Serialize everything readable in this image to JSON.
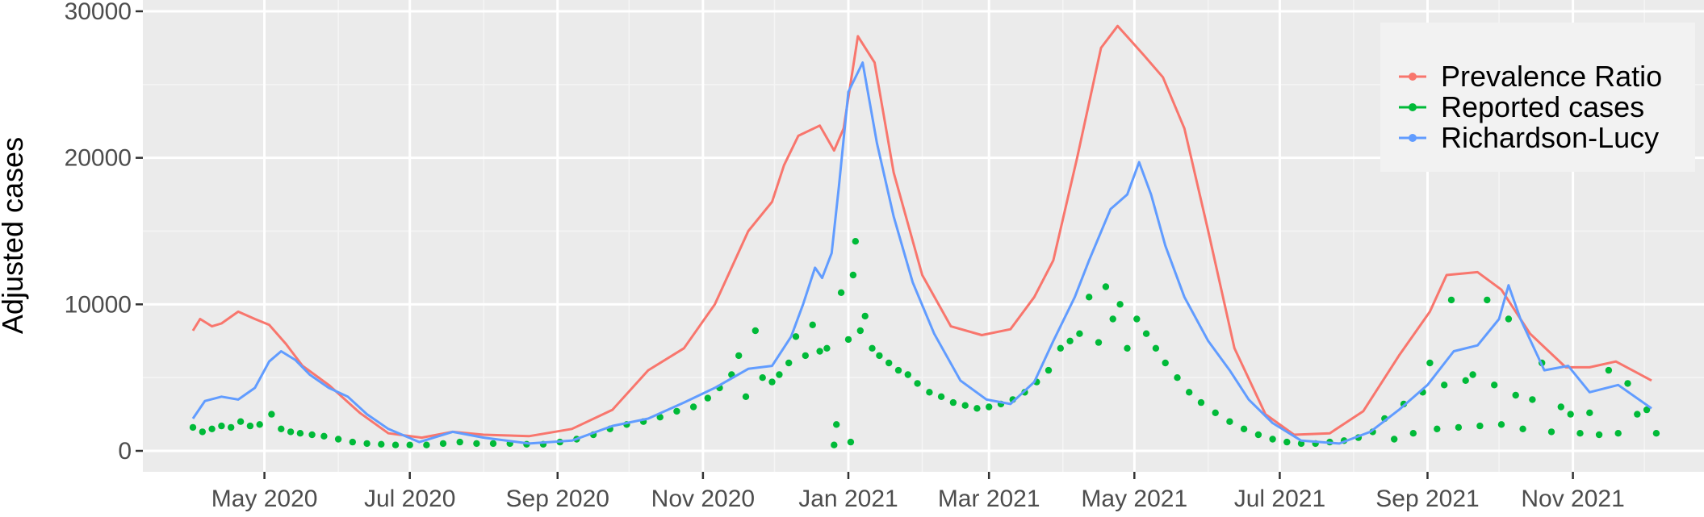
{
  "chart_data": {
    "type": "line",
    "ylabel": "Adjusted cases",
    "xlabel": "",
    "ylim": [
      0,
      30000
    ],
    "xlim": [
      "2020-03-11",
      "2021-12-26"
    ],
    "yticks": [
      0,
      10000,
      20000,
      30000
    ],
    "ytick_labels": [
      "0",
      "10000",
      "20000",
      "30000"
    ],
    "xticks": [
      {
        "date": "2020-05-01",
        "label": "May 2020"
      },
      {
        "date": "2020-07-01",
        "label": "Jul 2020"
      },
      {
        "date": "2020-09-01",
        "label": "Sep 2020"
      },
      {
        "date": "2020-11-01",
        "label": "Nov 2020"
      },
      {
        "date": "2021-01-01",
        "label": "Jan 2021"
      },
      {
        "date": "2021-03-01",
        "label": "Mar 2021"
      },
      {
        "date": "2021-05-01",
        "label": "May 2021"
      },
      {
        "date": "2021-07-01",
        "label": "Jul 2021"
      },
      {
        "date": "2021-09-01",
        "label": "Sep 2021"
      },
      {
        "date": "2021-11-01",
        "label": "Nov 2021"
      }
    ],
    "grid": true,
    "legend_position": "top-right",
    "series": [
      {
        "name": "Prevalence Ratio",
        "kind": "line",
        "color": "#F8766D",
        "points": [
          [
            "2020-04-01",
            8200
          ],
          [
            "2020-04-04",
            9000
          ],
          [
            "2020-04-09",
            8500
          ],
          [
            "2020-04-13",
            8700
          ],
          [
            "2020-04-20",
            9500
          ],
          [
            "2020-04-27",
            9000
          ],
          [
            "2020-05-03",
            8600
          ],
          [
            "2020-05-10",
            7300
          ],
          [
            "2020-05-17",
            5800
          ],
          [
            "2020-05-28",
            4500
          ],
          [
            "2020-06-10",
            2600
          ],
          [
            "2020-06-22",
            1200
          ],
          [
            "2020-07-06",
            900
          ],
          [
            "2020-07-19",
            1300
          ],
          [
            "2020-08-01",
            1100
          ],
          [
            "2020-08-20",
            1000
          ],
          [
            "2020-09-07",
            1500
          ],
          [
            "2020-09-24",
            2800
          ],
          [
            "2020-10-09",
            5500
          ],
          [
            "2020-10-24",
            7000
          ],
          [
            "2020-11-06",
            10000
          ],
          [
            "2020-11-20",
            15000
          ],
          [
            "2020-11-30",
            17000
          ],
          [
            "2020-12-05",
            19500
          ],
          [
            "2020-12-11",
            21500
          ],
          [
            "2020-12-20",
            22200
          ],
          [
            "2020-12-26",
            20500
          ],
          [
            "2020-12-30",
            22000
          ],
          [
            "2021-01-05",
            28300
          ],
          [
            "2021-01-12",
            26500
          ],
          [
            "2021-01-20",
            19000
          ],
          [
            "2021-02-01",
            12000
          ],
          [
            "2021-02-13",
            8500
          ],
          [
            "2021-02-26",
            7900
          ],
          [
            "2021-03-10",
            8300
          ],
          [
            "2021-03-20",
            10500
          ],
          [
            "2021-03-28",
            13000
          ],
          [
            "2021-04-07",
            20000
          ],
          [
            "2021-04-17",
            27500
          ],
          [
            "2021-04-24",
            29000
          ],
          [
            "2021-05-05",
            27000
          ],
          [
            "2021-05-13",
            25500
          ],
          [
            "2021-05-22",
            22000
          ],
          [
            "2021-06-01",
            15000
          ],
          [
            "2021-06-12",
            7000
          ],
          [
            "2021-06-25",
            2500
          ],
          [
            "2021-07-07",
            1100
          ],
          [
            "2021-07-22",
            1200
          ],
          [
            "2021-08-05",
            2700
          ],
          [
            "2021-08-20",
            6500
          ],
          [
            "2021-09-02",
            9500
          ],
          [
            "2021-09-09",
            12000
          ],
          [
            "2021-09-22",
            12200
          ],
          [
            "2021-10-02",
            11000
          ],
          [
            "2021-10-14",
            8000
          ],
          [
            "2021-10-29",
            5700
          ],
          [
            "2021-11-08",
            5700
          ],
          [
            "2021-11-19",
            6100
          ],
          [
            "2021-12-04",
            4800
          ]
        ]
      },
      {
        "name": "Reported cases",
        "kind": "points",
        "color": "#00BA38",
        "points": [
          [
            "2020-04-01",
            1600
          ],
          [
            "2020-04-05",
            1300
          ],
          [
            "2020-04-09",
            1500
          ],
          [
            "2020-04-13",
            1700
          ],
          [
            "2020-04-17",
            1600
          ],
          [
            "2020-04-21",
            2000
          ],
          [
            "2020-04-25",
            1700
          ],
          [
            "2020-04-29",
            1800
          ],
          [
            "2020-05-04",
            2500
          ],
          [
            "2020-05-08",
            1500
          ],
          [
            "2020-05-12",
            1300
          ],
          [
            "2020-05-16",
            1200
          ],
          [
            "2020-05-21",
            1100
          ],
          [
            "2020-05-26",
            1000
          ],
          [
            "2020-06-01",
            800
          ],
          [
            "2020-06-07",
            600
          ],
          [
            "2020-06-13",
            500
          ],
          [
            "2020-06-19",
            450
          ],
          [
            "2020-06-25",
            400
          ],
          [
            "2020-07-01",
            400
          ],
          [
            "2020-07-08",
            400
          ],
          [
            "2020-07-15",
            500
          ],
          [
            "2020-07-22",
            600
          ],
          [
            "2020-07-29",
            500
          ],
          [
            "2020-08-05",
            500
          ],
          [
            "2020-08-12",
            500
          ],
          [
            "2020-08-19",
            450
          ],
          [
            "2020-08-26",
            450
          ],
          [
            "2020-09-02",
            600
          ],
          [
            "2020-09-09",
            800
          ],
          [
            "2020-09-16",
            1100
          ],
          [
            "2020-09-23",
            1500
          ],
          [
            "2020-09-30",
            1800
          ],
          [
            "2020-10-07",
            2000
          ],
          [
            "2020-10-14",
            2300
          ],
          [
            "2020-10-21",
            2700
          ],
          [
            "2020-10-28",
            3000
          ],
          [
            "2020-11-03",
            3600
          ],
          [
            "2020-11-08",
            4300
          ],
          [
            "2020-11-13",
            5200
          ],
          [
            "2020-11-16",
            6500
          ],
          [
            "2020-11-19",
            3700
          ],
          [
            "2020-11-23",
            8200
          ],
          [
            "2020-11-26",
            5000
          ],
          [
            "2020-11-30",
            4700
          ],
          [
            "2020-12-03",
            5200
          ],
          [
            "2020-12-07",
            6000
          ],
          [
            "2020-12-10",
            7800
          ],
          [
            "2020-12-14",
            6500
          ],
          [
            "2020-12-17",
            8600
          ],
          [
            "2020-12-20",
            6800
          ],
          [
            "2020-12-23",
            7000
          ],
          [
            "2020-12-26",
            400
          ],
          [
            "2020-12-27",
            1800
          ],
          [
            "2020-12-29",
            10800
          ],
          [
            "2021-01-01",
            7600
          ],
          [
            "2021-01-02",
            600
          ],
          [
            "2021-01-03",
            12000
          ],
          [
            "2021-01-04",
            14300
          ],
          [
            "2021-01-06",
            8200
          ],
          [
            "2021-01-08",
            9200
          ],
          [
            "2021-01-11",
            7000
          ],
          [
            "2021-01-14",
            6500
          ],
          [
            "2021-01-18",
            6000
          ],
          [
            "2021-01-22",
            5500
          ],
          [
            "2021-01-26",
            5200
          ],
          [
            "2021-01-30",
            4600
          ],
          [
            "2021-02-04",
            4000
          ],
          [
            "2021-02-09",
            3700
          ],
          [
            "2021-02-14",
            3300
          ],
          [
            "2021-02-19",
            3100
          ],
          [
            "2021-02-24",
            2900
          ],
          [
            "2021-03-01",
            3000
          ],
          [
            "2021-03-06",
            3200
          ],
          [
            "2021-03-11",
            3500
          ],
          [
            "2021-03-16",
            4000
          ],
          [
            "2021-03-21",
            4700
          ],
          [
            "2021-03-26",
            5500
          ],
          [
            "2021-03-31",
            7000
          ],
          [
            "2021-04-04",
            7500
          ],
          [
            "2021-04-08",
            8000
          ],
          [
            "2021-04-12",
            10500
          ],
          [
            "2021-04-16",
            7400
          ],
          [
            "2021-04-19",
            11200
          ],
          [
            "2021-04-22",
            9000
          ],
          [
            "2021-04-25",
            10000
          ],
          [
            "2021-04-28",
            7000
          ],
          [
            "2021-05-02",
            9000
          ],
          [
            "2021-05-06",
            8000
          ],
          [
            "2021-05-10",
            7000
          ],
          [
            "2021-05-14",
            6000
          ],
          [
            "2021-05-19",
            5000
          ],
          [
            "2021-05-24",
            4000
          ],
          [
            "2021-05-29",
            3300
          ],
          [
            "2021-06-04",
            2600
          ],
          [
            "2021-06-10",
            2000
          ],
          [
            "2021-06-16",
            1500
          ],
          [
            "2021-06-22",
            1100
          ],
          [
            "2021-06-28",
            800
          ],
          [
            "2021-07-04",
            600
          ],
          [
            "2021-07-10",
            500
          ],
          [
            "2021-07-16",
            500
          ],
          [
            "2021-07-22",
            600
          ],
          [
            "2021-07-28",
            700
          ],
          [
            "2021-08-03",
            900
          ],
          [
            "2021-08-09",
            1300
          ],
          [
            "2021-08-14",
            2200
          ],
          [
            "2021-08-18",
            800
          ],
          [
            "2021-08-22",
            3200
          ],
          [
            "2021-08-26",
            1200
          ],
          [
            "2021-08-30",
            4000
          ],
          [
            "2021-09-02",
            6000
          ],
          [
            "2021-09-05",
            1500
          ],
          [
            "2021-09-08",
            4500
          ],
          [
            "2021-09-11",
            10300
          ],
          [
            "2021-09-14",
            1600
          ],
          [
            "2021-09-17",
            4800
          ],
          [
            "2021-09-20",
            5200
          ],
          [
            "2021-09-23",
            1700
          ],
          [
            "2021-09-26",
            10300
          ],
          [
            "2021-09-29",
            4500
          ],
          [
            "2021-10-02",
            1800
          ],
          [
            "2021-10-05",
            9000
          ],
          [
            "2021-10-08",
            3800
          ],
          [
            "2021-10-11",
            1500
          ],
          [
            "2021-10-15",
            3500
          ],
          [
            "2021-10-19",
            6000
          ],
          [
            "2021-10-23",
            1300
          ],
          [
            "2021-10-27",
            3000
          ],
          [
            "2021-10-31",
            2500
          ],
          [
            "2021-11-04",
            1200
          ],
          [
            "2021-11-08",
            2600
          ],
          [
            "2021-11-12",
            1100
          ],
          [
            "2021-11-16",
            5500
          ],
          [
            "2021-11-20",
            1200
          ],
          [
            "2021-11-24",
            4600
          ],
          [
            "2021-11-28",
            2500
          ],
          [
            "2021-12-02",
            2800
          ],
          [
            "2021-12-06",
            1200
          ]
        ]
      },
      {
        "name": "Richardson-Lucy",
        "kind": "line",
        "color": "#619CFF",
        "points": [
          [
            "2020-04-01",
            2200
          ],
          [
            "2020-04-06",
            3400
          ],
          [
            "2020-04-13",
            3700
          ],
          [
            "2020-04-20",
            3500
          ],
          [
            "2020-04-27",
            4300
          ],
          [
            "2020-05-03",
            6100
          ],
          [
            "2020-05-08",
            6800
          ],
          [
            "2020-05-14",
            6200
          ],
          [
            "2020-05-20",
            5200
          ],
          [
            "2020-05-28",
            4300
          ],
          [
            "2020-06-05",
            3700
          ],
          [
            "2020-06-13",
            2500
          ],
          [
            "2020-06-22",
            1500
          ],
          [
            "2020-07-05",
            600
          ],
          [
            "2020-07-19",
            1300
          ],
          [
            "2020-08-01",
            900
          ],
          [
            "2020-08-20",
            500
          ],
          [
            "2020-09-07",
            700
          ],
          [
            "2020-09-24",
            1700
          ],
          [
            "2020-10-09",
            2200
          ],
          [
            "2020-10-24",
            3300
          ],
          [
            "2020-11-06",
            4300
          ],
          [
            "2020-11-20",
            5600
          ],
          [
            "2020-11-30",
            5800
          ],
          [
            "2020-12-08",
            7800
          ],
          [
            "2020-12-13",
            10000
          ],
          [
            "2020-12-18",
            12500
          ],
          [
            "2020-12-21",
            11800
          ],
          [
            "2020-12-25",
            13500
          ],
          [
            "2020-12-28",
            18000
          ],
          [
            "2021-01-01",
            24500
          ],
          [
            "2021-01-07",
            26500
          ],
          [
            "2021-01-13",
            21000
          ],
          [
            "2021-01-20",
            16000
          ],
          [
            "2021-01-28",
            11500
          ],
          [
            "2021-02-06",
            8000
          ],
          [
            "2021-02-17",
            4800
          ],
          [
            "2021-02-28",
            3500
          ],
          [
            "2021-03-10",
            3200
          ],
          [
            "2021-03-20",
            4700
          ],
          [
            "2021-03-28",
            7500
          ],
          [
            "2021-04-06",
            10500
          ],
          [
            "2021-04-12",
            13000
          ],
          [
            "2021-04-21",
            16500
          ],
          [
            "2021-04-28",
            17500
          ],
          [
            "2021-05-03",
            19700
          ],
          [
            "2021-05-08",
            17500
          ],
          [
            "2021-05-14",
            14000
          ],
          [
            "2021-05-22",
            10500
          ],
          [
            "2021-06-01",
            7500
          ],
          [
            "2021-06-10",
            5500
          ],
          [
            "2021-06-18",
            3500
          ],
          [
            "2021-06-28",
            1900
          ],
          [
            "2021-07-10",
            700
          ],
          [
            "2021-07-26",
            500
          ],
          [
            "2021-08-08",
            1300
          ],
          [
            "2021-08-20",
            2800
          ],
          [
            "2021-09-01",
            4500
          ],
          [
            "2021-09-12",
            6800
          ],
          [
            "2021-09-22",
            7200
          ],
          [
            "2021-10-01",
            9000
          ],
          [
            "2021-10-05",
            11300
          ],
          [
            "2021-10-10",
            9000
          ],
          [
            "2021-10-20",
            5500
          ],
          [
            "2021-10-30",
            5800
          ],
          [
            "2021-11-08",
            4000
          ],
          [
            "2021-11-20",
            4500
          ],
          [
            "2021-12-04",
            2900
          ]
        ]
      }
    ]
  }
}
